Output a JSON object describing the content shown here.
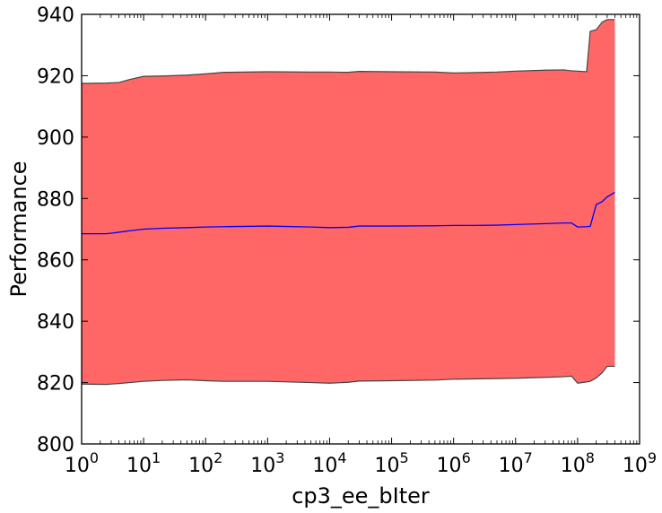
{
  "chart_data": {
    "type": "line",
    "title": "",
    "xlabel": "cp3_ee_bIter",
    "ylabel": "Performance",
    "xscale": "log",
    "xlim": [
      1,
      1000000000
    ],
    "ylim": [
      800,
      940
    ],
    "grid": false,
    "x_ticks": [
      {
        "base": "10",
        "exp": "0"
      },
      {
        "base": "10",
        "exp": "1"
      },
      {
        "base": "10",
        "exp": "2"
      },
      {
        "base": "10",
        "exp": "3"
      },
      {
        "base": "10",
        "exp": "4"
      },
      {
        "base": "10",
        "exp": "5"
      },
      {
        "base": "10",
        "exp": "6"
      },
      {
        "base": "10",
        "exp": "7"
      },
      {
        "base": "10",
        "exp": "8"
      },
      {
        "base": "10",
        "exp": "9"
      }
    ],
    "y_ticks": [
      "800",
      "820",
      "840",
      "860",
      "880",
      "900",
      "920",
      "940"
    ],
    "colors": {
      "band": "#ff6666",
      "band_edge": "#444444",
      "mean": "#0000ff"
    },
    "x": [
      1,
      2.5,
      4,
      6,
      10,
      20,
      50,
      100,
      200,
      1000,
      5000,
      10000,
      20000,
      30000,
      100000,
      500000,
      1000000,
      2000000,
      5000000,
      10000000,
      30000000,
      60000000,
      80000000,
      100000000,
      140000000,
      160000000,
      200000000,
      250000000,
      300000000,
      400000000
    ],
    "series": [
      {
        "role": "mean",
        "values": [
          868.5,
          868.5,
          869,
          869.5,
          870,
          870.3,
          870.5,
          870.7,
          870.8,
          871,
          870.7,
          870.5,
          870.6,
          871,
          871,
          871.1,
          871.2,
          871.2,
          871.3,
          871.5,
          871.8,
          872,
          872,
          870.7,
          870.8,
          870.9,
          878,
          879,
          880.5,
          882
        ]
      },
      {
        "role": "upper",
        "values": [
          917.5,
          917.6,
          917.8,
          918.8,
          919.8,
          919.9,
          920.2,
          920.6,
          921.1,
          921.3,
          921.2,
          921.2,
          921.1,
          921.4,
          921.3,
          921.2,
          920.9,
          921,
          921.2,
          921.5,
          921.8,
          921.9,
          921.6,
          921.5,
          921.3,
          934.5,
          935,
          937.5,
          938.3,
          938.3
        ]
      },
      {
        "role": "lower",
        "values": [
          819.5,
          819.4,
          819.7,
          820,
          820.4,
          820.7,
          820.9,
          820.6,
          820.4,
          820.4,
          820,
          819.8,
          820.1,
          820.5,
          820.6,
          820.8,
          821.1,
          821.2,
          821.3,
          821.4,
          821.7,
          821.9,
          822.1,
          819.8,
          820.2,
          820.4,
          821.5,
          823.2,
          825.3,
          825.3
        ]
      }
    ]
  }
}
